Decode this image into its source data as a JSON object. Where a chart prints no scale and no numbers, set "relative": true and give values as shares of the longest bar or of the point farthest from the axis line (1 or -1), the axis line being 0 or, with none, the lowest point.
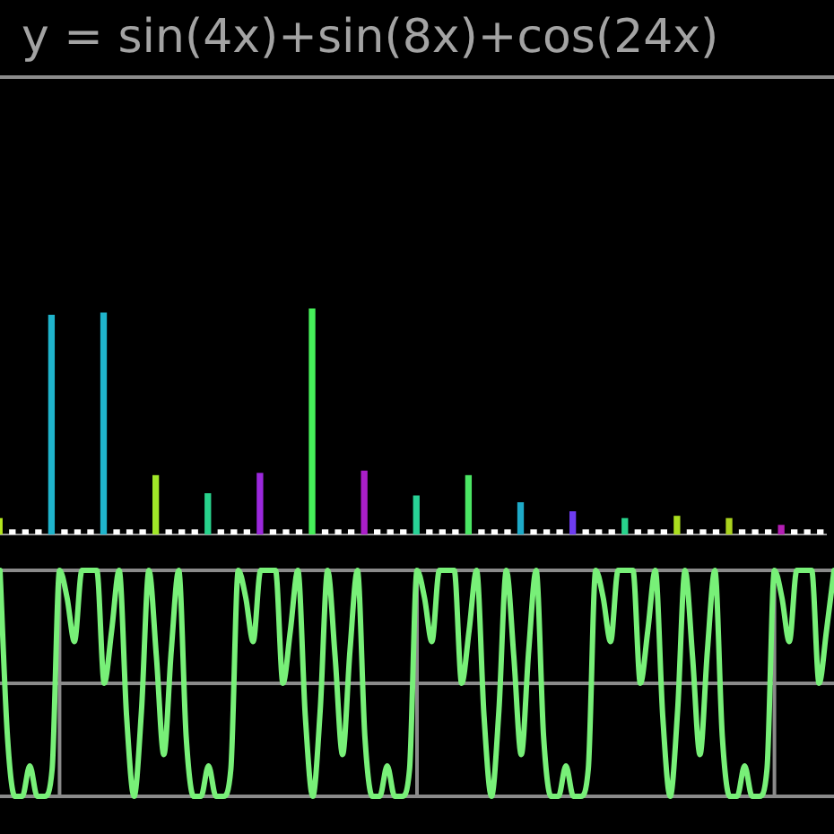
{
  "chart_data": [
    {
      "type": "bar",
      "title": "y = sin(4x)+sin(8x)+cos(24x)",
      "relative": true,
      "categories": [
        null,
        null,
        null,
        null,
        null,
        null,
        null,
        null,
        null,
        null,
        null,
        null,
        null,
        null,
        null,
        null,
        null,
        null,
        null,
        null,
        null,
        null,
        null,
        null,
        null,
        null,
        null,
        null,
        null,
        null,
        null,
        null,
        null,
        null,
        null,
        null,
        null,
        null,
        null,
        null,
        null,
        null,
        null,
        null,
        null,
        null,
        null,
        null,
        null,
        null,
        null,
        null,
        null,
        null,
        null,
        null,
        null,
        null,
        null,
        null,
        null,
        null,
        null,
        null
      ],
      "values": [
        0.07,
        0.02,
        0.02,
        0.02,
        0.97,
        0.02,
        0.02,
        0.02,
        0.98,
        0.02,
        0.02,
        0.02,
        0.26,
        0.02,
        0.02,
        0.02,
        0.18,
        0.02,
        0.02,
        0.02,
        0.27,
        0.02,
        0.02,
        0.02,
        1,
        0.02,
        0.02,
        0.02,
        0.28,
        0.02,
        0.02,
        0.02,
        0.17,
        0.02,
        0.02,
        0.02,
        0.26,
        0.02,
        0.02,
        0.02,
        0.14,
        0.02,
        0.02,
        0.02,
        0.1,
        0.02,
        0.02,
        0.02,
        0.07,
        0.02,
        0.02,
        0.02,
        0.08,
        0.02,
        0.02,
        0.02,
        0.07,
        0.02,
        0.02,
        0.02,
        0.04,
        0.02,
        0.02,
        0.02
      ],
      "colors": [
        "#b4e61e",
        "#ffffff",
        "#ffffff",
        "#ffffff",
        "#1fb4cc",
        "#ffffff",
        "#ffffff",
        "#ffffff",
        "#1fb4cc",
        "#ffffff",
        "#ffffff",
        "#ffffff",
        "#a0e628",
        "#ffffff",
        "#ffffff",
        "#ffffff",
        "#28d28c",
        "#ffffff",
        "#ffffff",
        "#ffffff",
        "#9b28dc",
        "#ffffff",
        "#ffffff",
        "#ffffff",
        "#46f05a",
        "#ffffff",
        "#ffffff",
        "#ffffff",
        "#aa1ec8",
        "#ffffff",
        "#ffffff",
        "#ffffff",
        "#28d296",
        "#ffffff",
        "#ffffff",
        "#ffffff",
        "#4be664",
        "#ffffff",
        "#ffffff",
        "#ffffff",
        "#1eaac8",
        "#ffffff",
        "#ffffff",
        "#ffffff",
        "#6e3cf0",
        "#ffffff",
        "#ffffff",
        "#ffffff",
        "#28d28c",
        "#ffffff",
        "#ffffff",
        "#ffffff",
        "#aade1e",
        "#ffffff",
        "#ffffff",
        "#ffffff",
        "#aad21e",
        "#ffffff",
        "#ffffff",
        "#ffffff",
        "#b41eb4",
        "#ffffff",
        "#ffffff",
        "#ffffff"
      ]
    },
    {
      "type": "line",
      "relative": true,
      "grid": true,
      "categories": [
        null,
        null,
        null,
        null,
        null,
        null,
        null,
        null,
        null,
        null,
        null,
        null,
        null,
        null,
        null,
        null,
        null,
        null,
        null,
        null,
        null,
        null,
        null,
        null,
        null,
        null,
        null,
        null,
        null,
        null,
        null,
        null,
        null,
        null,
        null,
        null,
        null,
        null,
        null,
        null,
        null,
        null,
        null,
        null,
        null,
        null,
        null,
        null,
        null,
        null,
        null,
        null,
        null,
        null,
        null,
        null,
        null,
        null,
        null,
        null,
        null,
        null,
        null,
        null,
        null,
        null,
        null,
        null,
        null,
        null,
        null,
        null,
        null,
        null,
        null,
        null,
        null,
        null,
        null,
        null,
        null,
        null,
        null,
        null,
        null,
        null,
        null,
        null,
        null,
        null,
        null,
        null,
        null,
        null,
        null,
        null,
        null,
        null,
        null,
        null,
        null,
        null,
        null,
        null,
        null,
        null,
        null,
        null,
        null,
        null,
        null,
        null,
        null
      ],
      "series": [
        {
          "color": "#78f078",
          "values": [
            1,
            -0.47,
            -1,
            -1,
            -0.73,
            -1,
            -1,
            -0.76,
            1,
            0.76,
            0.37,
            1,
            1,
            1,
            0,
            0.47,
            1,
            -0.29,
            -1,
            -0.24,
            1,
            0.24,
            -0.63,
            0.29,
            1,
            -0.47,
            -1,
            -1,
            -0.73,
            -1,
            -1,
            -0.76,
            1,
            0.76,
            0.37,
            1,
            1,
            1,
            0,
            0.47,
            1,
            -0.29,
            -1,
            -0.24,
            1,
            0.24,
            -0.63,
            0.29,
            1,
            -0.47,
            -1,
            -1,
            -0.73,
            -1,
            -1,
            -0.76,
            1,
            0.76,
            0.37,
            1,
            1,
            1,
            0,
            0.47,
            1,
            -0.29,
            -1,
            -0.24,
            1,
            0.24,
            -0.63,
            0.29,
            1,
            -0.47,
            -1,
            -1,
            -0.73,
            -1,
            -1,
            -0.76,
            1,
            0.76,
            0.37,
            1,
            1,
            1,
            0,
            0.47,
            1,
            -0.29,
            -1,
            -0.24,
            1,
            0.24,
            -0.63,
            0.29,
            1,
            -0.47,
            -1,
            -1,
            -0.73,
            -1,
            -1,
            -0.76,
            1,
            0.76,
            0.37,
            1,
            1,
            1,
            0,
            0.47,
            1
          ]
        }
      ]
    }
  ]
}
